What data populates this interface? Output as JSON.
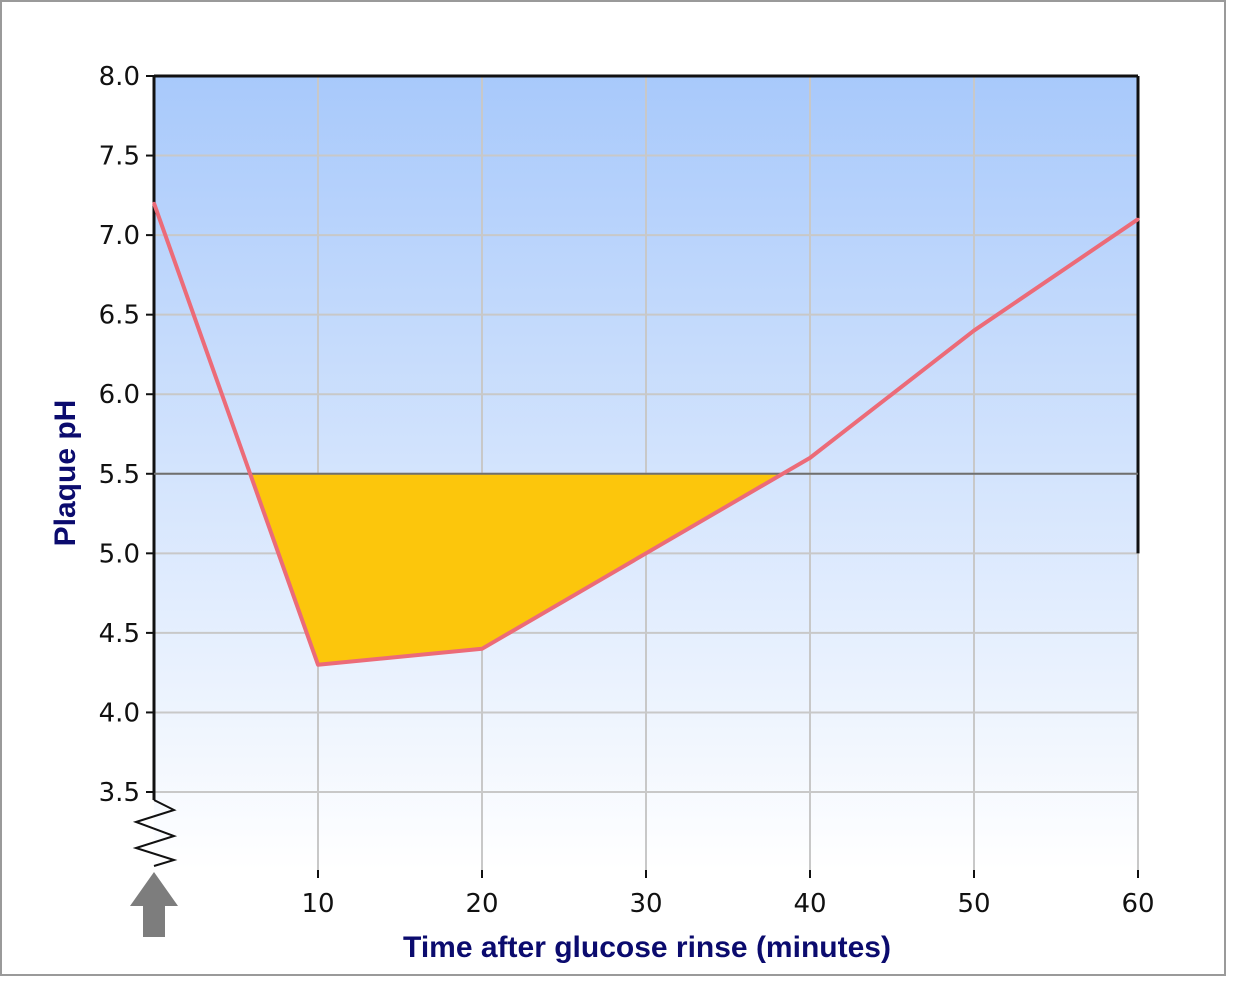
{
  "colors": {
    "line": "#ec6b78",
    "fill_below_threshold": "#fcc60c",
    "threshold_line": "#6f6f6f",
    "gradient_top": "#a8c9fb",
    "gradient_bottom": "#ffffff",
    "grid": "#c8c8c8",
    "axis_title": "#0b0b6e",
    "arrow": "#7d7d7d"
  },
  "icons": {
    "start_marker": "up-arrow-icon",
    "axis_break": "zigzag-break-icon"
  },
  "chart_data": {
    "type": "line",
    "title": "",
    "xlabel": "Time after glucose rinse (minutes)",
    "ylabel": "Plaque pH",
    "xlim": [
      0,
      60
    ],
    "ylim": [
      3.5,
      8.0
    ],
    "y_axis_break_below": 3.5,
    "x_ticks": [
      10,
      20,
      30,
      40,
      50,
      60
    ],
    "x_tick_labels": [
      "10",
      "20",
      "30",
      "40",
      "50",
      "60"
    ],
    "y_ticks": [
      3.5,
      4.0,
      4.5,
      5.0,
      5.5,
      6.0,
      6.5,
      7.0,
      7.5,
      8.0
    ],
    "y_tick_labels": [
      "3.5",
      "4.0",
      "4.5",
      "5.0",
      "5.5",
      "6.0",
      "6.5",
      "7.0",
      "7.5",
      "8.0"
    ],
    "grid": true,
    "legend": "none",
    "threshold": 5.5,
    "shaded_region": "below threshold",
    "series": [
      {
        "x": [
          0,
          10,
          20,
          30,
          40,
          50,
          60
        ],
        "values": [
          7.2,
          4.3,
          4.4,
          5.0,
          5.6,
          6.4,
          7.1
        ]
      }
    ]
  }
}
